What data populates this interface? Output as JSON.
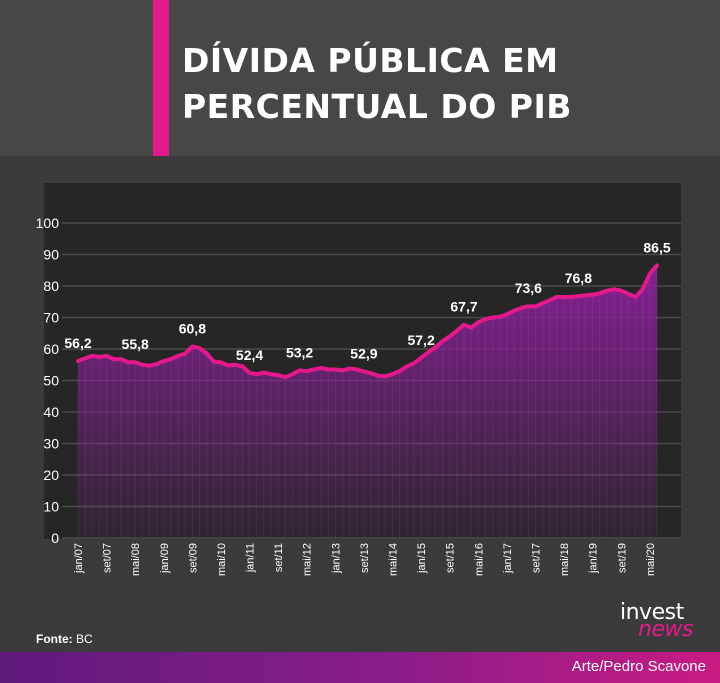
{
  "header": {
    "title_line1": "DÍVIDA PÚBLICA EM",
    "title_line2": "PERCENTUAL DO PIB",
    "accent_color": "#e5198b"
  },
  "chart_data": {
    "type": "area",
    "title": "DÍVIDA PÚBLICA EM PERCENTUAL DO PIB",
    "xlabel": "",
    "ylabel": "",
    "ylim": [
      0,
      100
    ],
    "y_ticks": [
      0,
      10,
      20,
      30,
      40,
      50,
      60,
      70,
      80,
      90,
      100
    ],
    "grid": true,
    "x_tick_labels": [
      "jan/07",
      "set/07",
      "mai/08",
      "jan/09",
      "set/09",
      "mai/10",
      "jan/11",
      "set/11",
      "mai/12",
      "jan/13",
      "set/13",
      "mai/14",
      "jan/15",
      "set/15",
      "mai/16",
      "jan/17",
      "set/17",
      "mai/18",
      "jan/19",
      "set/19",
      "mai/20"
    ],
    "line_color": "#e5198b",
    "series": [
      {
        "x": [
          "jan/07",
          "mar/07",
          "mai/07",
          "jul/07",
          "set/07",
          "nov/07",
          "jan/08",
          "mar/08",
          "mai/08",
          "jul/08",
          "set/08",
          "nov/08",
          "jan/09",
          "mar/09",
          "mai/09",
          "jul/09",
          "set/09",
          "nov/09",
          "jan/10",
          "mar/10",
          "mai/10",
          "jul/10",
          "set/10",
          "nov/10",
          "jan/11",
          "mar/11",
          "mai/11",
          "jul/11",
          "set/11",
          "nov/11",
          "jan/12",
          "mar/12",
          "mai/12",
          "jul/12",
          "set/12",
          "nov/12",
          "jan/13",
          "mar/13",
          "mai/13",
          "jul/13",
          "set/13",
          "nov/13",
          "jan/14",
          "mar/14",
          "mai/14",
          "jul/14",
          "set/14",
          "nov/14",
          "jan/15",
          "mar/15",
          "mai/15",
          "jul/15",
          "set/15",
          "nov/15",
          "jan/16",
          "mar/16",
          "mai/16",
          "jul/16",
          "set/16",
          "nov/16",
          "jan/17",
          "mar/17",
          "mai/17",
          "jul/17",
          "set/17",
          "nov/17",
          "jan/18",
          "mar/18",
          "mai/18",
          "jul/18",
          "set/18",
          "nov/18",
          "jan/19",
          "mar/19",
          "mai/19",
          "jul/19",
          "set/19",
          "nov/19",
          "jan/20",
          "mar/20",
          "mai/20",
          "jun/20"
        ],
        "values": [
          56.2,
          57.0,
          57.8,
          57.5,
          57.8,
          56.8,
          56.8,
          55.8,
          55.8,
          55.0,
          54.7,
          55.2,
          56.2,
          56.8,
          57.8,
          58.5,
          60.8,
          60.3,
          58.6,
          56.0,
          55.7,
          54.8,
          55.0,
          54.5,
          52.4,
          52.0,
          52.5,
          52.0,
          51.7,
          51.0,
          52.0,
          53.2,
          53.0,
          53.5,
          54.0,
          53.5,
          53.5,
          53.2,
          53.8,
          53.5,
          52.9,
          52.3,
          51.5,
          51.3,
          52.0,
          53.0,
          54.5,
          55.5,
          57.2,
          59.0,
          60.5,
          62.5,
          64.0,
          65.8,
          67.7,
          66.8,
          68.5,
          69.5,
          70.0,
          70.2,
          71.0,
          72.2,
          73.0,
          73.6,
          73.5,
          74.5,
          75.5,
          76.5,
          76.5,
          76.5,
          76.8,
          77.0,
          77.2,
          77.7,
          78.5,
          79.0,
          78.5,
          77.5,
          76.5,
          79.0,
          84.0,
          86.5
        ]
      }
    ],
    "data_labels": [
      {
        "x": "jan/07",
        "text": "56,2"
      },
      {
        "x": "mai/08",
        "text": "55,8"
      },
      {
        "x": "set/09",
        "text": "60,8"
      },
      {
        "x": "jan/11",
        "text": "52,4"
      },
      {
        "x": "mar/12",
        "text": "53,2"
      },
      {
        "x": "set/13",
        "text": "52,9"
      },
      {
        "x": "jan/15",
        "text": "57,2"
      },
      {
        "x": "jan/16",
        "text": "67,7"
      },
      {
        "x": "jul/17",
        "text": "73,6"
      },
      {
        "x": "set/18",
        "text": "76,8"
      },
      {
        "x": "jun/20",
        "text": "86,5"
      }
    ]
  },
  "footer": {
    "source_label": "Fonte:",
    "source_value": "BC",
    "credit": "Arte/Pedro Scavone",
    "logo_line1": "invest",
    "logo_line2": "news"
  }
}
